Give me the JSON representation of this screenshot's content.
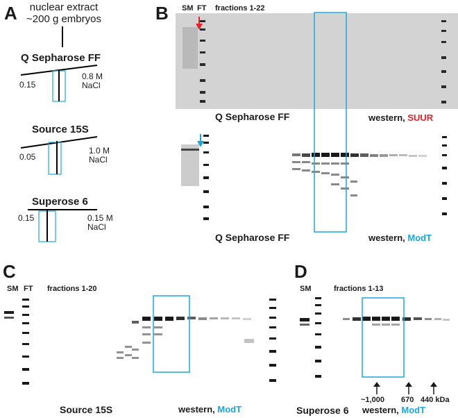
{
  "panelA": {
    "letter": "A",
    "source_line1": "nuclear extract",
    "source_line2": "~200 g embryos",
    "columns": [
      {
        "name": "Q Sepharose FF",
        "start": "0.15",
        "end": "0.8 M",
        "unit": "NaCl"
      },
      {
        "name": "Source 15S",
        "start": "0.05",
        "end": "1.0 M",
        "unit": "NaCl"
      },
      {
        "name": "Superose 6",
        "start": "0.15",
        "end": "0.15 M",
        "unit": "NaCl"
      }
    ]
  },
  "panelB": {
    "letter": "B",
    "lane_sm": "SM",
    "lane_ft": "FT",
    "fractions": "fractions 1-22",
    "top_column": "Q Sepharose FF",
    "top_western": "western, ",
    "top_antibody": "SUUR",
    "bottom_column": "Q Sepharose FF",
    "bottom_western": "western, ",
    "bottom_antibody": "ModT"
  },
  "panelC": {
    "letter": "C",
    "lane_sm": "SM",
    "lane_ft": "FT",
    "fractions": "fractions 1-20",
    "column": "Source 15S",
    "western": "western, ",
    "antibody": "ModT"
  },
  "panelD": {
    "letter": "D",
    "lane_sm": "SM",
    "fractions": "fractions 1-13",
    "column": "Superose 6",
    "western": "western, ",
    "antibody": "ModT",
    "markers": [
      "~1,000",
      "670",
      "440 kDa"
    ]
  },
  "colors": {
    "highlight_box": "#1aa7dc",
    "suur_red": "#e8202a",
    "modt_blue": "#1aa7dc",
    "red_arrow": "#e8202a",
    "blue_arrow": "#1aa7dc"
  }
}
